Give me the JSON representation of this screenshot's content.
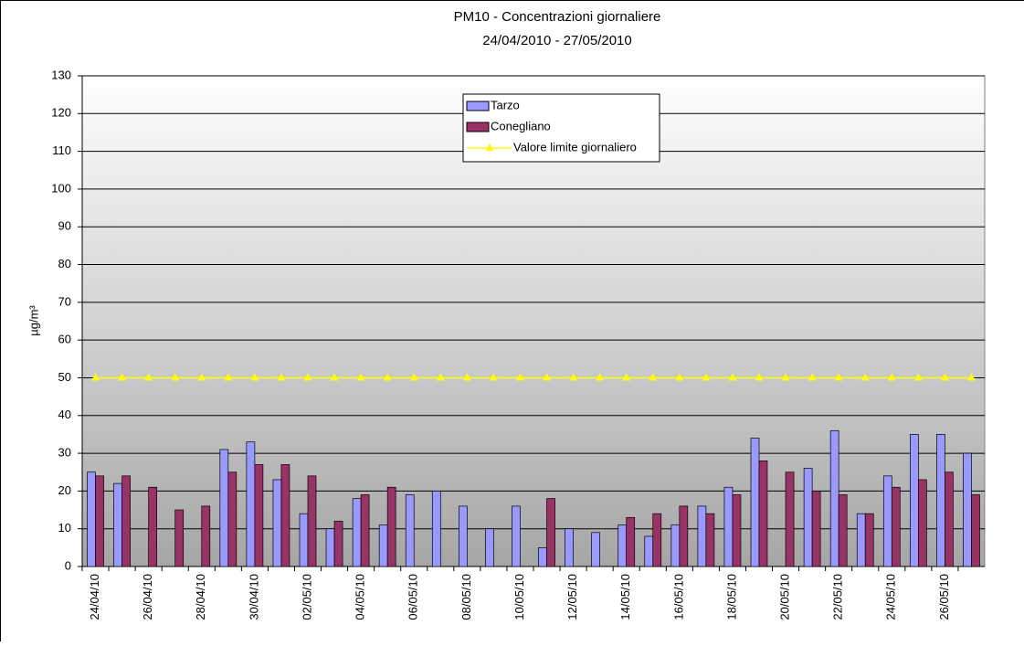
{
  "chart_data": {
    "type": "bar",
    "title": "PM10 - Concentrazioni giornaliere",
    "subtitle": "24/04/2010 - 27/05/2010",
    "y_label": "µg/m³",
    "categories": [
      "24/04/10",
      null,
      "26/04/10",
      null,
      "28/04/10",
      null,
      "30/04/10",
      null,
      "02/05/10",
      null,
      "04/05/10",
      null,
      "06/05/10",
      null,
      "08/05/10",
      null,
      "10/05/10",
      null,
      "12/05/10",
      null,
      "14/05/10",
      null,
      "16/05/10",
      null,
      "18/05/10",
      null,
      "20/05/10",
      null,
      "22/05/10",
      null,
      "24/05/10",
      null,
      "26/05/10",
      null
    ],
    "series": [
      {
        "name": "Tarzo",
        "color": "#9999ff",
        "values": [
          25,
          22,
          null,
          null,
          null,
          31,
          33,
          23,
          14,
          10,
          18,
          11,
          19,
          20,
          16,
          10,
          16,
          5,
          10,
          9,
          11,
          8,
          11,
          16,
          21,
          34,
          null,
          26,
          36,
          14,
          24,
          35,
          35,
          30
        ]
      },
      {
        "name": "Conegliano",
        "color": "#993366",
        "values": [
          24,
          24,
          21,
          15,
          16,
          25,
          27,
          27,
          24,
          12,
          19,
          21,
          null,
          null,
          null,
          null,
          null,
          18,
          null,
          null,
          13,
          14,
          16,
          14,
          19,
          28,
          25,
          20,
          19,
          14,
          21,
          23,
          25,
          19
        ]
      },
      {
        "name": "Valore limite giornaliero",
        "color": "#ffff00",
        "type": "line",
        "values": [
          50,
          50,
          50,
          50,
          50,
          50,
          50,
          50,
          50,
          50,
          50,
          50,
          50,
          50,
          50,
          50,
          50,
          50,
          50,
          50,
          50,
          50,
          50,
          50,
          50,
          50,
          50,
          50,
          50,
          50,
          50,
          50,
          50,
          50
        ]
      }
    ],
    "ylim": [
      0,
      130
    ],
    "yticks": [
      0,
      10,
      20,
      30,
      40,
      50,
      60,
      70,
      80,
      90,
      100,
      110,
      120,
      130
    ],
    "grid": true,
    "legend": "top"
  }
}
